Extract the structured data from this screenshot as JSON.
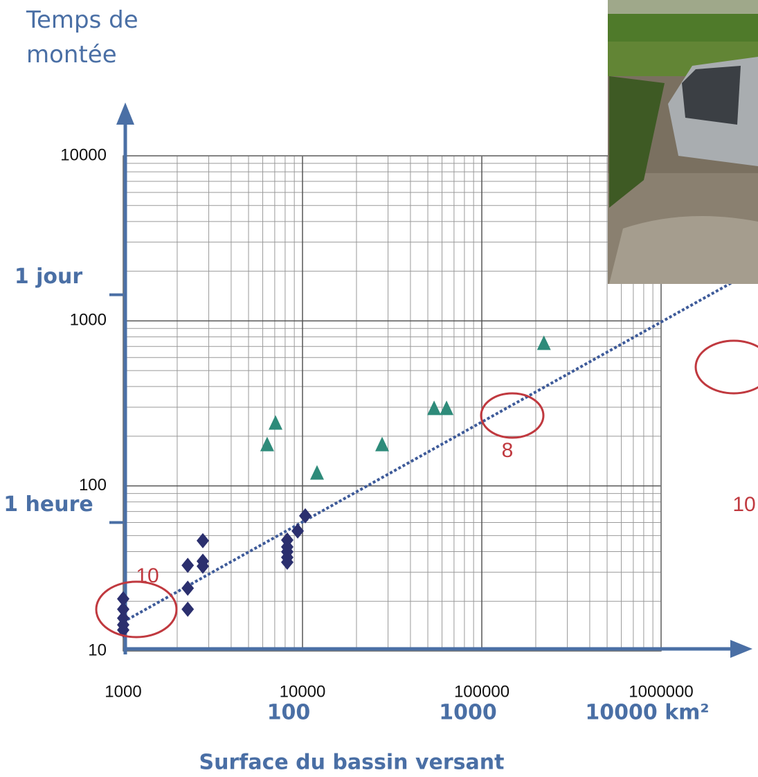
{
  "chart_data": {
    "type": "scatter",
    "title": "Temps de montée",
    "x_label": "Surface du bassin versant",
    "log_x": true,
    "log_y": true,
    "grid": true,
    "minor_grid": true,
    "xlim": [
      1000,
      1000000
    ],
    "ylim": [
      10,
      10000
    ],
    "xticks": [
      1000,
      10000,
      100000,
      1000000
    ],
    "yticks": [
      10,
      100,
      1000,
      10000
    ],
    "x2ticks": [
      {
        "value": 10000,
        "label": "100"
      },
      {
        "value": 100000,
        "label": "1000"
      },
      {
        "value": 1000000,
        "label": "10000 km²"
      }
    ],
    "y2ticks": [
      {
        "value": 1440,
        "label": "1 jour"
      },
      {
        "value": 60,
        "label": "1 heure"
      }
    ],
    "series": [
      {
        "marker": "diamond",
        "color": "#2b2f6e",
        "x": [
          1000,
          1000,
          1000,
          1000,
          1000,
          2290,
          2290,
          2290,
          2780,
          2780,
          2780,
          8220,
          8220,
          8220,
          8220,
          8220,
          9400,
          10360
        ],
        "y": [
          20.7,
          17.9,
          15.8,
          14.4,
          13.4,
          33,
          24,
          17.9,
          46.6,
          35,
          32.6,
          47,
          42.7,
          39.9,
          36.9,
          34.5,
          53.3,
          65.9
        ]
      },
      {
        "marker": "triangle",
        "color": "#2e8b7a",
        "x": [
          6350,
          7070,
          12050,
          27800,
          54200,
          63600,
          222000
        ],
        "y": [
          177,
          239,
          119,
          177,
          293,
          293,
          727
        ]
      }
    ],
    "trendline": {
      "x": [
        1000,
        3500000
      ],
      "y": [
        15,
        2100
      ],
      "color": "#3d5a99"
    },
    "annotations": [
      "10",
      "8",
      "10"
    ]
  }
}
